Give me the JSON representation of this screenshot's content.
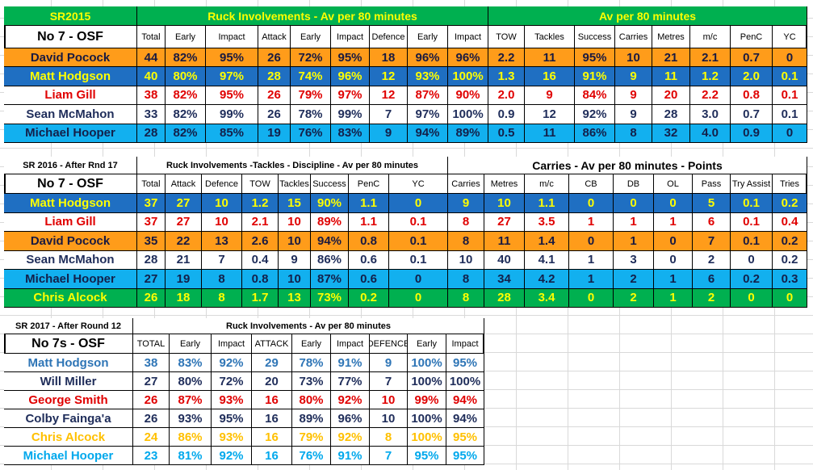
{
  "tables": [
    {
      "title": "SR2015",
      "groups": [
        "Ruck Involvements - Av per 80 minutes",
        "Av per 80 minutes"
      ],
      "label": "No 7 - OSF",
      "columns": [
        "Total",
        "Early",
        "Impact",
        "Attack",
        "Early",
        "Impact",
        "Defence",
        "Early",
        "Impact",
        "TOW",
        "Tackles",
        "Success",
        "Carries",
        "Metres",
        "m/c",
        "PenC",
        "YC"
      ],
      "rows": [
        {
          "name": "David Pocock",
          "values": [
            "44",
            "82%",
            "95%",
            "26",
            "72%",
            "95%",
            "18",
            "96%",
            "96%",
            "2.2",
            "11",
            "95%",
            "10",
            "21",
            "2.1",
            "0.7",
            "0"
          ]
        },
        {
          "name": "Matt Hodgson",
          "values": [
            "40",
            "80%",
            "97%",
            "28",
            "74%",
            "96%",
            "12",
            "93%",
            "100%",
            "1.3",
            "16",
            "91%",
            "9",
            "11",
            "1.2",
            "2.0",
            "0.1"
          ]
        },
        {
          "name": "Liam Gill",
          "values": [
            "38",
            "82%",
            "95%",
            "26",
            "79%",
            "97%",
            "12",
            "87%",
            "90%",
            "2.0",
            "9",
            "84%",
            "9",
            "20",
            "2.2",
            "0.8",
            "0.1"
          ]
        },
        {
          "name": "Sean McMahon",
          "values": [
            "33",
            "82%",
            "99%",
            "26",
            "78%",
            "99%",
            "7",
            "97%",
            "100%",
            "0.9",
            "12",
            "92%",
            "9",
            "28",
            "3.0",
            "0.7",
            "0.1"
          ]
        },
        {
          "name": "Michael Hooper",
          "values": [
            "28",
            "82%",
            "85%",
            "19",
            "76%",
            "83%",
            "9",
            "94%",
            "89%",
            "0.5",
            "11",
            "86%",
            "8",
            "32",
            "4.0",
            "0.9",
            "0"
          ]
        }
      ]
    },
    {
      "title": "SR 2016 - After Rnd 17",
      "groups": [
        "Ruck Involvements -Tackles - Discipline - Av per 80 minutes",
        "Carries - Av per 80 minutes - Points"
      ],
      "label": "No 7 - OSF",
      "columns": [
        "Total",
        "Attack",
        "Defence",
        "TOW",
        "Tackles",
        "Success",
        "PenC",
        "YC",
        "Carries",
        "Metres",
        "m/c",
        "CB",
        "DB",
        "OL",
        "Pass",
        "Try Assist",
        "Tries"
      ],
      "rows": [
        {
          "name": "Matt Hodgson",
          "values": [
            "37",
            "27",
            "10",
            "1.2",
            "15",
            "90%",
            "1.1",
            "0",
            "9",
            "10",
            "1.1",
            "0",
            "0",
            "0",
            "5",
            "0.1",
            "0.2"
          ]
        },
        {
          "name": "Liam Gill",
          "values": [
            "37",
            "27",
            "10",
            "2.1",
            "10",
            "89%",
            "1.1",
            "0.1",
            "8",
            "27",
            "3.5",
            "1",
            "1",
            "1",
            "6",
            "0.1",
            "0.4"
          ]
        },
        {
          "name": "David Pocock",
          "values": [
            "35",
            "22",
            "13",
            "2.6",
            "10",
            "94%",
            "0.8",
            "0.1",
            "8",
            "11",
            "1.4",
            "0",
            "1",
            "0",
            "7",
            "0.1",
            "0.2"
          ]
        },
        {
          "name": "Sean McMahon",
          "values": [
            "28",
            "21",
            "7",
            "0.4",
            "9",
            "86%",
            "0.6",
            "0.1",
            "10",
            "40",
            "4.1",
            "1",
            "3",
            "0",
            "2",
            "0",
            "0.2"
          ]
        },
        {
          "name": "Michael Hooper",
          "values": [
            "27",
            "19",
            "8",
            "0.8",
            "10",
            "87%",
            "0.6",
            "0",
            "8",
            "34",
            "4.2",
            "1",
            "2",
            "1",
            "6",
            "0.2",
            "0.3"
          ]
        },
        {
          "name": "Chris Alcock",
          "values": [
            "26",
            "18",
            "8",
            "1.7",
            "13",
            "73%",
            "0.2",
            "0",
            "8",
            "28",
            "3.4",
            "0",
            "2",
            "1",
            "2",
            "0",
            "0"
          ]
        }
      ]
    },
    {
      "title": "SR 2017 - After Round 12",
      "groups": [
        "Ruck Involvements - Av per 80 minutes"
      ],
      "label": "No 7s - OSF",
      "columns": [
        "TOTAL",
        "Early",
        "Impact",
        "ATTACK",
        "Early",
        "Impact",
        "DEFENCE",
        "Early",
        "Impact"
      ],
      "rows": [
        {
          "name": "Matt Hodgson",
          "values": [
            "38",
            "83%",
            "92%",
            "29",
            "78%",
            "91%",
            "9",
            "100%",
            "95%"
          ]
        },
        {
          "name": "Will Miller",
          "values": [
            "27",
            "80%",
            "72%",
            "20",
            "73%",
            "77%",
            "7",
            "100%",
            "100%"
          ]
        },
        {
          "name": "George Smith",
          "values": [
            "26",
            "87%",
            "93%",
            "16",
            "80%",
            "92%",
            "10",
            "99%",
            "94%"
          ]
        },
        {
          "name": "Colby Fainga'a",
          "values": [
            "26",
            "93%",
            "95%",
            "16",
            "89%",
            "96%",
            "10",
            "100%",
            "94%"
          ]
        },
        {
          "name": "Chris Alcock",
          "values": [
            "24",
            "86%",
            "93%",
            "16",
            "79%",
            "92%",
            "8",
            "100%",
            "95%"
          ]
        },
        {
          "name": "Michael Hooper",
          "values": [
            "23",
            "81%",
            "92%",
            "16",
            "76%",
            "91%",
            "7",
            "95%",
            "95%"
          ]
        }
      ]
    }
  ]
}
